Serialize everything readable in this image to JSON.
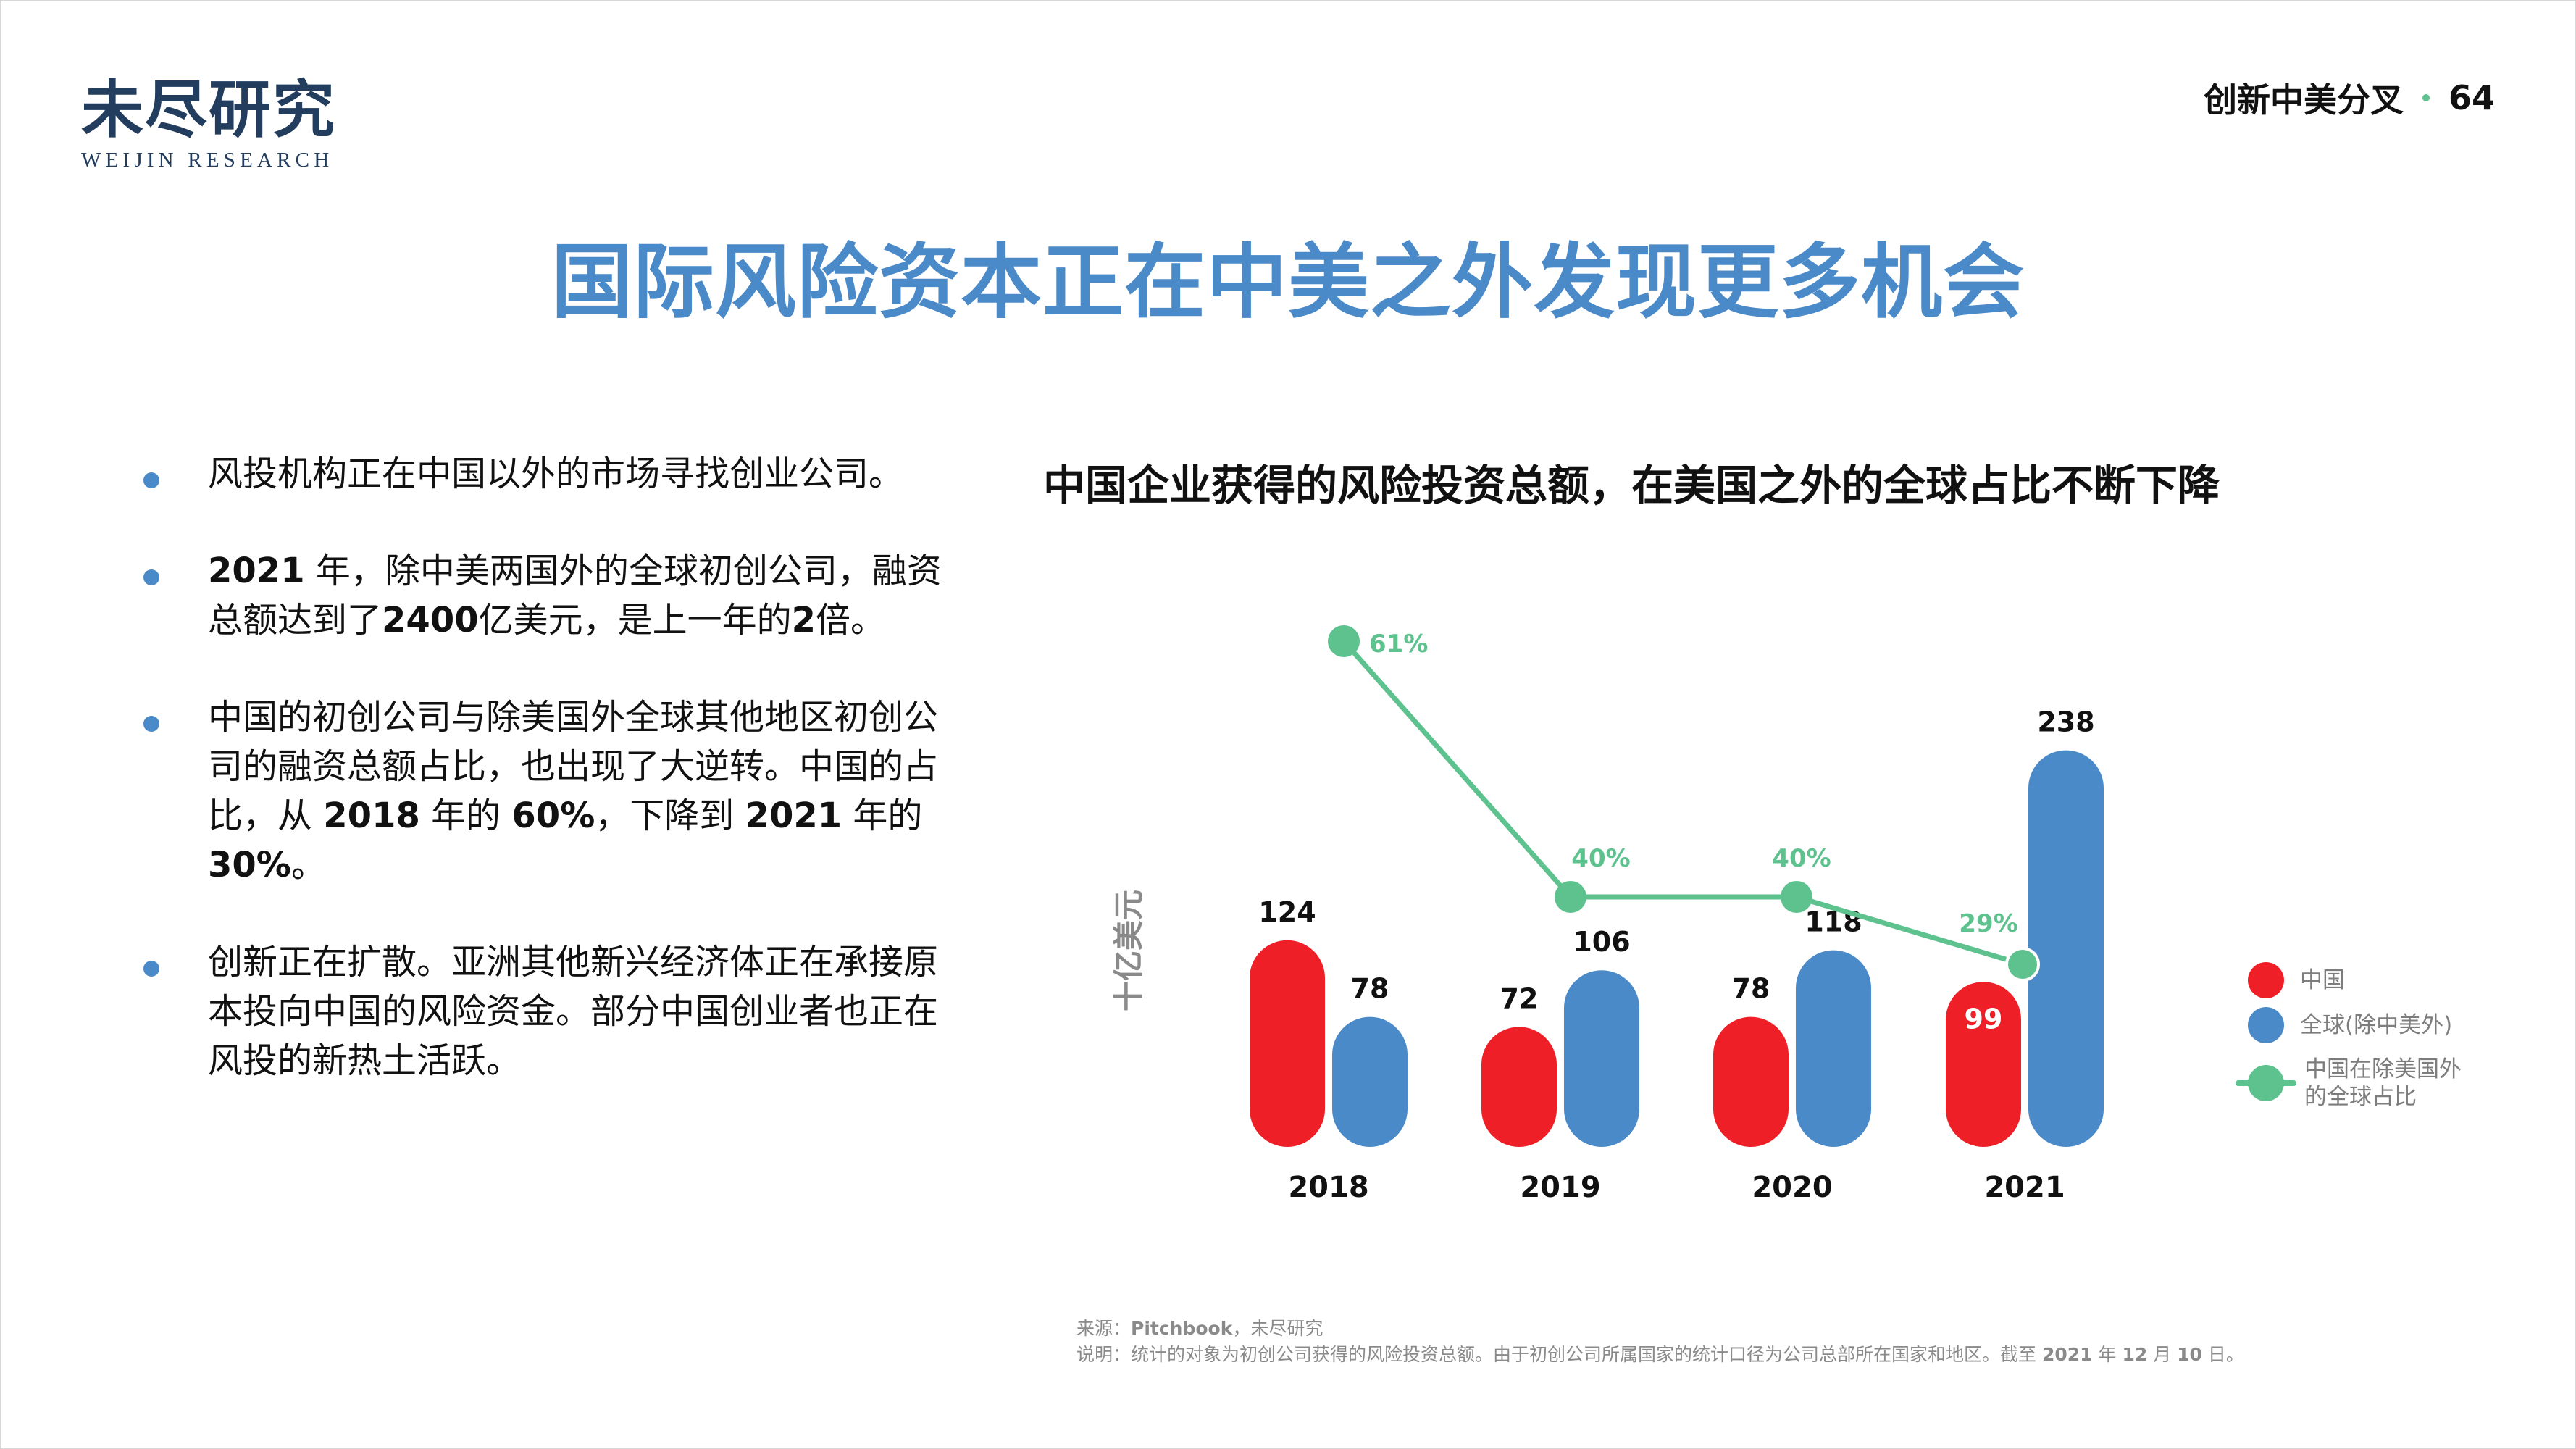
{
  "logo": {
    "cn": "未尽研究",
    "en": "WEIJIN RESEARCH"
  },
  "header": {
    "section": "创新中美分叉",
    "page_number": "64",
    "separator_color": "#5ec28f"
  },
  "title": "国际风险资本正在中美之外发现更多机会",
  "bullets": [
    {
      "segments": [
        {
          "text": "风投机构正在中国以外的市场寻找创业公司。",
          "bold": false
        }
      ]
    },
    {
      "segments": [
        {
          "text": "2021",
          "bold": true
        },
        {
          "text": " 年，除中美两国外的全球初创公司，融资总额达到了",
          "bold": false
        },
        {
          "text": "2400",
          "bold": true
        },
        {
          "text": "亿美元，是上一年的",
          "bold": false
        },
        {
          "text": "2",
          "bold": true
        },
        {
          "text": "倍。",
          "bold": false
        }
      ]
    },
    {
      "segments": [
        {
          "text": "中国的初创公司与除美国外全球其他地区初创公司的融资总额占比，也出现了大逆转。中国的占比，从 ",
          "bold": false
        },
        {
          "text": "2018",
          "bold": true
        },
        {
          "text": " 年的 ",
          "bold": false
        },
        {
          "text": "60%",
          "bold": true
        },
        {
          "text": "，下降到 ",
          "bold": false
        },
        {
          "text": "2021",
          "bold": true
        },
        {
          "text": " 年的 ",
          "bold": false
        },
        {
          "text": "30%",
          "bold": true
        },
        {
          "text": "。",
          "bold": false
        }
      ]
    },
    {
      "segments": [
        {
          "text": "创新正在扩散。亚洲其他新兴经济体正在承接原本投向中国的风险资金。部分中国创业者也正在风投的新热土活跃。",
          "bold": false
        }
      ]
    }
  ],
  "colors": {
    "china": "#ee1f26",
    "global_ex": "#4a8ac9",
    "share_line": "#5ec28f",
    "title": "#4a8ac9",
    "bullet_dot": "#4a8ac9",
    "axis_label": "#8a8a8a",
    "legend_text": "#7d7d7d",
    "footnote": "#8a8a8a"
  },
  "chart_data": {
    "type": "bar",
    "title": "中国企业获得的风险投资总额，在美国之外的全球占比不断下降",
    "xlabel": "",
    "ylabel": "十亿美元",
    "categories": [
      "2018",
      "2019",
      "2020",
      "2021"
    ],
    "series": [
      {
        "name": "中国",
        "type": "bar",
        "color": "#ee1f26",
        "values": [
          124,
          72,
          78,
          99
        ]
      },
      {
        "name": "全球(除中美外)",
        "type": "bar",
        "color": "#4a8ac9",
        "values": [
          78,
          106,
          118,
          238
        ]
      },
      {
        "name": "中国在除美国外的全球占比",
        "type": "line",
        "color": "#5ec28f",
        "values": [
          61,
          40,
          40,
          29
        ],
        "labels": [
          "61%",
          "40%",
          "40%",
          "29%"
        ],
        "unit": "%"
      }
    ],
    "grid": false,
    "legend_position": "right",
    "annotations": [
      "99 label rendered inside red 2021 bar in white"
    ]
  },
  "legend": {
    "items": [
      {
        "label": "中国",
        "kind": "dot",
        "color": "#ee1f26"
      },
      {
        "label": "全球(除中美外)",
        "kind": "dot",
        "color": "#4a8ac9"
      },
      {
        "label": "中国在除美国外的全球占比",
        "kind": "line",
        "color": "#5ec28f"
      }
    ]
  },
  "footnotes": {
    "source_prefix": "来源：",
    "source_bold": "Pitchbook",
    "source_suffix": "，未尽研究",
    "note_prefix": "说明：统计的对象为初创公司获得的风险投资总额。由于初创公司所属国家的统计口径为公司总部所在国家和地区。截至 ",
    "note_year": "2021",
    "note_mid1": " 年 ",
    "note_month": "12",
    "note_mid2": " 月 ",
    "note_day": "10",
    "note_suffix": " 日。"
  }
}
